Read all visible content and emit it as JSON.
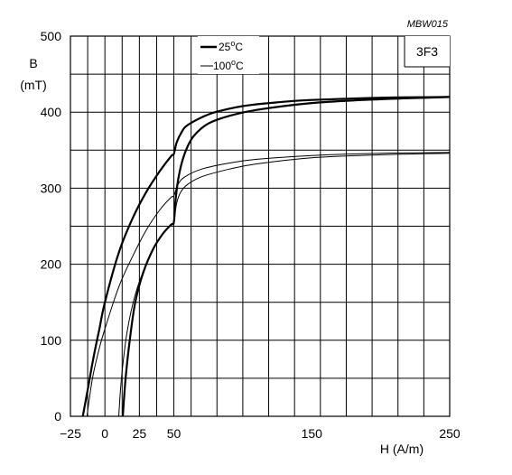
{
  "chart_data": {
    "type": "line",
    "figure_id": "MBW015",
    "material": "3F3",
    "ylabel_symbol": "B",
    "ylabel_unit": "(mT)",
    "xlabel": "H  (A/m)",
    "xlim": [
      -25,
      250
    ],
    "ylim": [
      0,
      500
    ],
    "x_ticks": [
      {
        "value": -25,
        "label": "−25"
      },
      {
        "value": 0,
        "label": "0"
      },
      {
        "value": 25,
        "label": "25"
      },
      {
        "value": 50,
        "label": "50"
      },
      {
        "value": 150,
        "label": "150"
      },
      {
        "value": 250,
        "label": "250"
      }
    ],
    "y_ticks": [
      {
        "value": 0,
        "label": "0"
      },
      {
        "value": 100,
        "label": "100"
      },
      {
        "value": 200,
        "label": "200"
      },
      {
        "value": 300,
        "label": "300"
      },
      {
        "value": 400,
        "label": "400"
      },
      {
        "value": 500,
        "label": "500"
      }
    ],
    "grid": true,
    "legend_position": "top",
    "series": [
      {
        "name": "25°C",
        "legend_main": "25",
        "legend_sup": "o",
        "legend_tail": "C",
        "style": "thick",
        "upper_branch": [
          [
            -16,
            0
          ],
          [
            -12,
            40
          ],
          [
            -8,
            80
          ],
          [
            -4,
            115
          ],
          [
            0,
            150
          ],
          [
            10,
            215
          ],
          [
            20,
            260
          ],
          [
            30,
            295
          ],
          [
            40,
            323
          ],
          [
            48,
            342
          ],
          [
            50,
            345
          ],
          [
            52,
            360
          ],
          [
            56,
            375
          ],
          [
            60,
            383
          ],
          [
            70,
            393
          ],
          [
            80,
            400
          ],
          [
            100,
            408
          ],
          [
            125,
            413
          ],
          [
            150,
            416
          ],
          [
            200,
            419
          ],
          [
            250,
            420
          ]
        ],
        "lower_branch": [
          [
            13,
            0
          ],
          [
            15,
            50
          ],
          [
            18,
            100
          ],
          [
            22,
            150
          ],
          [
            28,
            190
          ],
          [
            35,
            220
          ],
          [
            42,
            240
          ],
          [
            48,
            252
          ],
          [
            50,
            255
          ],
          [
            51,
            280
          ],
          [
            53,
            310
          ],
          [
            56,
            335
          ],
          [
            60,
            355
          ],
          [
            65,
            370
          ],
          [
            75,
            385
          ],
          [
            90,
            395
          ],
          [
            110,
            403
          ],
          [
            150,
            412
          ],
          [
            200,
            417
          ],
          [
            250,
            420
          ]
        ]
      },
      {
        "name": "100°C",
        "legend_main": "100",
        "legend_sup": "o",
        "legend_tail": "C",
        "style": "thin",
        "upper_branch": [
          [
            -13,
            0
          ],
          [
            -9,
            50
          ],
          [
            -4,
            90
          ],
          [
            0,
            115
          ],
          [
            10,
            170
          ],
          [
            20,
            210
          ],
          [
            30,
            245
          ],
          [
            40,
            272
          ],
          [
            48,
            288
          ],
          [
            50,
            290
          ],
          [
            53,
            305
          ],
          [
            58,
            315
          ],
          [
            70,
            325
          ],
          [
            90,
            333
          ],
          [
            110,
            338
          ],
          [
            150,
            343
          ],
          [
            200,
            346
          ],
          [
            250,
            347
          ]
        ],
        "lower_branch": [
          [
            10,
            0
          ],
          [
            12,
            50
          ],
          [
            16,
            110
          ],
          [
            22,
            160
          ],
          [
            30,
            200
          ],
          [
            40,
            235
          ],
          [
            48,
            252
          ],
          [
            50,
            255
          ],
          [
            52,
            280
          ],
          [
            55,
            295
          ],
          [
            60,
            305
          ],
          [
            70,
            315
          ],
          [
            90,
            325
          ],
          [
            110,
            332
          ],
          [
            150,
            340
          ],
          [
            200,
            344
          ],
          [
            250,
            346
          ]
        ]
      }
    ]
  }
}
